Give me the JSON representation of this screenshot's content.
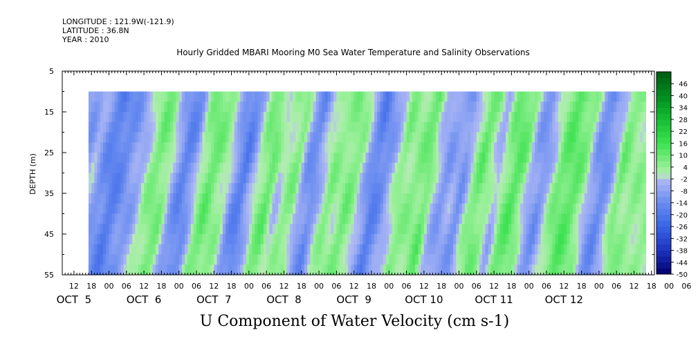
{
  "header": {
    "longitude": "LONGITUDE : 121.9W(-121.9)",
    "latitude": "LATITUDE : 36.8N",
    "year": "YEAR : 2010",
    "title": "Hourly Gridded MBARI Mooring M0 Sea Water Temperature and Salinity Observations"
  },
  "chart_data": {
    "type": "heatmap",
    "title": "U Component of Water Velocity (cm s-1)",
    "ylabel": "DEPTH (m)",
    "y_ticks": [
      "5",
      "15",
      "25",
      "35",
      "45",
      "55"
    ],
    "y_tick_values": [
      5,
      15,
      25,
      35,
      45,
      55
    ],
    "ylim": [
      5,
      55
    ],
    "y_inverted": true,
    "data_depth_range": [
      10,
      55
    ],
    "x_hour_labels": [
      "12",
      "18",
      "00",
      "06",
      "12",
      "18",
      "00",
      "06",
      "12",
      "18",
      "00",
      "06",
      "12",
      "18",
      "00",
      "06",
      "12",
      "18",
      "00",
      "06",
      "12",
      "18",
      "00",
      "06",
      "12",
      "18",
      "00",
      "06",
      "12",
      "18",
      "00",
      "06",
      "12",
      "18",
      "00",
      "06"
    ],
    "x_start_hour": 12,
    "x_day_labels": [
      {
        "text": "OCT  5",
        "center_hour": 12
      },
      {
        "text": "OCT  6",
        "center_hour": 36
      },
      {
        "text": "OCT  7",
        "center_hour": 60
      },
      {
        "text": "OCT  8",
        "center_hour": 84
      },
      {
        "text": "OCT  9",
        "center_hour": 108
      },
      {
        "text": "OCT 10",
        "center_hour": 132
      },
      {
        "text": "OCT 11",
        "center_hour": 156
      },
      {
        "text": "OCT 12",
        "center_hour": 180
      }
    ],
    "x_range_hours": [
      8,
      211
    ],
    "data_hour_range": [
      17,
      208
    ],
    "colorbar_labels": [
      "46",
      "40",
      "34",
      "28",
      "22",
      "16",
      "10",
      "4",
      "-2",
      "-8",
      "-14",
      "-20",
      "-26",
      "-32",
      "-38",
      "-44",
      "-50"
    ],
    "colorbar_min": -50,
    "colorbar_max": 52,
    "colorbar_step": 3,
    "profile": [
      {
        "hour": 17,
        "u": -8
      },
      {
        "hour": 20,
        "u": -10
      },
      {
        "hour": 23,
        "u": -4
      },
      {
        "hour": 26,
        "u": -12
      },
      {
        "hour": 30,
        "u": -18
      },
      {
        "hour": 33,
        "u": -14
      },
      {
        "hour": 36,
        "u": -10
      },
      {
        "hour": 39,
        "u": -6
      },
      {
        "hour": 42,
        "u": 3
      },
      {
        "hour": 45,
        "u": 8
      },
      {
        "hour": 48,
        "u": 6
      },
      {
        "hour": 51,
        "u": -8
      },
      {
        "hour": 54,
        "u": -16
      },
      {
        "hour": 57,
        "u": -12
      },
      {
        "hour": 60,
        "u": 4
      },
      {
        "hour": 63,
        "u": 10
      },
      {
        "hour": 66,
        "u": 6
      },
      {
        "hour": 69,
        "u": 2
      },
      {
        "hour": 72,
        "u": -12
      },
      {
        "hour": 75,
        "u": -18
      },
      {
        "hour": 78,
        "u": -6
      },
      {
        "hour": 81,
        "u": 6
      },
      {
        "hour": 84,
        "u": 10
      },
      {
        "hour": 87,
        "u": -2
      },
      {
        "hour": 90,
        "u": 4
      },
      {
        "hour": 93,
        "u": 6
      },
      {
        "hour": 96,
        "u": -10
      },
      {
        "hour": 99,
        "u": -14
      },
      {
        "hour": 102,
        "u": -2
      },
      {
        "hour": 105,
        "u": 6
      },
      {
        "hour": 108,
        "u": 3
      },
      {
        "hour": 111,
        "u": 8
      },
      {
        "hour": 114,
        "u": 4
      },
      {
        "hour": 117,
        "u": -8
      },
      {
        "hour": 120,
        "u": -18
      },
      {
        "hour": 123,
        "u": -12
      },
      {
        "hour": 126,
        "u": -4
      },
      {
        "hour": 129,
        "u": 6
      },
      {
        "hour": 132,
        "u": 4
      },
      {
        "hour": 135,
        "u": 6
      },
      {
        "hour": 138,
        "u": 10
      },
      {
        "hour": 141,
        "u": -4
      },
      {
        "hour": 144,
        "u": -10
      },
      {
        "hour": 147,
        "u": -6
      },
      {
        "hour": 150,
        "u": -12
      },
      {
        "hour": 153,
        "u": 2
      },
      {
        "hour": 156,
        "u": 10
      },
      {
        "hour": 159,
        "u": 4
      },
      {
        "hour": 162,
        "u": -6
      },
      {
        "hour": 165,
        "u": 8
      },
      {
        "hour": 168,
        "u": 12
      },
      {
        "hour": 171,
        "u": 6
      },
      {
        "hour": 174,
        "u": -8
      },
      {
        "hour": 177,
        "u": -12
      },
      {
        "hour": 180,
        "u": -2
      },
      {
        "hour": 183,
        "u": 8
      },
      {
        "hour": 186,
        "u": 12
      },
      {
        "hour": 189,
        "u": 10
      },
      {
        "hour": 192,
        "u": 4
      },
      {
        "hour": 195,
        "u": -10
      },
      {
        "hour": 198,
        "u": -14
      },
      {
        "hour": 201,
        "u": -6
      },
      {
        "hour": 204,
        "u": 8
      },
      {
        "hour": 207,
        "u": 4
      }
    ],
    "grid": false
  }
}
